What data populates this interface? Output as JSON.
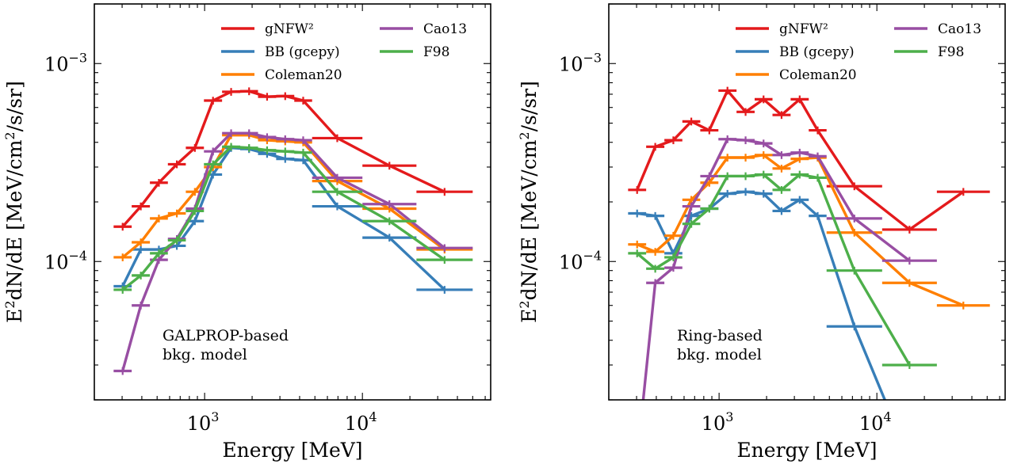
{
  "figure": {
    "axis_tick_labels": {
      "x": [
        "10",
        "3",
        "10",
        "4"
      ],
      "y": [
        "10",
        "−3",
        "10",
        "−4"
      ]
    }
  },
  "chart_data": [
    {
      "type": "line",
      "xlabel": "Energy [MeV]",
      "ylabel": "E2dN/dE [MeV/cm2/s/sr]",
      "xscale": "log",
      "yscale": "log",
      "xlim": [
        200,
        65000
      ],
      "ylim": [
        2e-05,
        0.002
      ],
      "legend": "top-right",
      "annotation": [
        "GALPROP-based",
        "bkg. model"
      ],
      "bins": [
        [
          265,
          345
        ],
        [
          345,
          450
        ],
        [
          450,
          585
        ],
        [
          585,
          760
        ],
        [
          760,
          990
        ],
        [
          990,
          1290
        ],
        [
          1290,
          1680
        ],
        [
          1680,
          2180
        ],
        [
          2180,
          2840
        ],
        [
          2840,
          3700
        ],
        [
          3700,
          4800
        ],
        [
          4800,
          10000
        ],
        [
          10000,
          22000
        ],
        [
          22000,
          50000
        ]
      ],
      "series": [
        {
          "name": "gNFW²",
          "color": "#e41a1c",
          "values": [
            0.00015,
            0.00019,
            0.00025,
            0.00031,
            0.000375,
            0.00065,
            0.00072,
            0.000725,
            0.00068,
            0.000685,
            0.00065,
            0.00042,
            0.000305,
            0.000225
          ]
        },
        {
          "name": "BB (gcepy)",
          "color": "#377eb8",
          "values": [
            7.5e-05,
            0.000115,
            0.000115,
            0.00012,
            0.00016,
            0.000275,
            0.000375,
            0.00037,
            0.00035,
            0.00033,
            0.000325,
            0.00019,
            0.000132,
            7.2e-05
          ]
        },
        {
          "name": "Coleman20",
          "color": "#ff7f00",
          "values": [
            0.000105,
            0.000125,
            0.000165,
            0.000175,
            0.000225,
            0.0003,
            0.000435,
            0.000435,
            0.00041,
            0.000405,
            0.0004,
            0.000255,
            0.000185,
            0.000115
          ]
        },
        {
          "name": "Cao13",
          "color": "#984ea3",
          "values": [
            2.8e-05,
            6e-05,
            0.000102,
            0.00013,
            0.000185,
            0.00036,
            0.000445,
            0.000445,
            0.000425,
            0.000415,
            0.00041,
            0.000265,
            0.000195,
            0.000117
          ]
        },
        {
          "name": "F98",
          "color": "#4daf4a",
          "values": [
            7.2e-05,
            8.5e-05,
            0.00011,
            0.000128,
            0.00018,
            0.00031,
            0.00038,
            0.000375,
            0.000365,
            0.00036,
            0.000355,
            0.000225,
            0.00016,
            0.000102
          ]
        }
      ]
    },
    {
      "type": "line",
      "xlabel": "Energy [MeV]",
      "ylabel": "E2dN/dE [MeV/cm2/s/sr]",
      "xscale": "log",
      "yscale": "log",
      "xlim": [
        200,
        65000
      ],
      "ylim": [
        2e-05,
        0.002
      ],
      "legend": "top-right",
      "annotation": [
        "Ring-based",
        "bkg. model"
      ],
      "bins": [
        [
          265,
          345
        ],
        [
          345,
          450
        ],
        [
          450,
          585
        ],
        [
          585,
          760
        ],
        [
          760,
          990
        ],
        [
          990,
          1290
        ],
        [
          1290,
          1680
        ],
        [
          1680,
          2180
        ],
        [
          2180,
          2840
        ],
        [
          2840,
          3700
        ],
        [
          3700,
          4800
        ],
        [
          4800,
          10800
        ],
        [
          10800,
          24000
        ],
        [
          24000,
          52000
        ]
      ],
      "series": [
        {
          "name": "gNFW²",
          "color": "#e41a1c",
          "values": [
            0.00023,
            0.00038,
            0.00041,
            0.00051,
            0.00046,
            0.00073,
            0.00057,
            0.00066,
            0.00055,
            0.00066,
            0.00046,
            0.00024,
            0.000145,
            0.000225
          ]
        },
        {
          "name": "BB (gcepy)",
          "color": "#377eb8",
          "values": [
            0.000175,
            0.00017,
            0.00011,
            0.00017,
            0.000185,
            0.00022,
            0.000225,
            0.00022,
            0.00018,
            0.000205,
            0.00017,
            4.7e-05,
            1e-05,
            null
          ]
        },
        {
          "name": "Coleman20",
          "color": "#ff7f00",
          "values": [
            0.000122,
            0.000112,
            0.000135,
            0.000205,
            0.00025,
            0.000335,
            0.000335,
            0.000345,
            0.000295,
            0.00033,
            0.000335,
            0.00014,
            7.8e-05,
            6e-05
          ]
        },
        {
          "name": "Cao13",
          "color": "#984ea3",
          "values": [
            1e-05,
            7.8e-05,
            9.3e-05,
            0.00019,
            0.00027,
            0.000415,
            0.00041,
            0.000395,
            0.000345,
            0.000355,
            0.00034,
            0.000165,
            0.000101,
            null
          ]
        },
        {
          "name": "F98",
          "color": "#4daf4a",
          "values": [
            0.00011,
            9.2e-05,
            0.000105,
            0.000155,
            0.000185,
            0.00027,
            0.00027,
            0.000275,
            0.00023,
            0.000275,
            0.000265,
            9e-05,
            3e-05,
            null
          ]
        }
      ]
    }
  ]
}
